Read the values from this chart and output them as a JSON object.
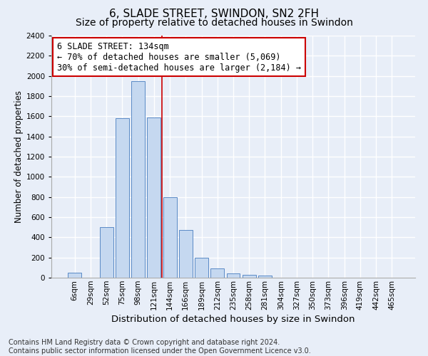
{
  "title": "6, SLADE STREET, SWINDON, SN2 2FH",
  "subtitle": "Size of property relative to detached houses in Swindon",
  "xlabel": "Distribution of detached houses by size in Swindon",
  "ylabel": "Number of detached properties",
  "categories": [
    "6sqm",
    "29sqm",
    "52sqm",
    "75sqm",
    "98sqm",
    "121sqm",
    "144sqm",
    "166sqm",
    "189sqm",
    "212sqm",
    "235sqm",
    "258sqm",
    "281sqm",
    "304sqm",
    "327sqm",
    "350sqm",
    "373sqm",
    "396sqm",
    "419sqm",
    "442sqm",
    "465sqm"
  ],
  "values": [
    50,
    0,
    500,
    1580,
    1950,
    1590,
    800,
    470,
    200,
    90,
    40,
    30,
    20,
    0,
    0,
    0,
    0,
    0,
    0,
    0,
    0
  ],
  "bar_color": "#c5d8f0",
  "bar_edge_color": "#5a8ac6",
  "vline_color": "#cc0000",
  "vline_x": 5.5,
  "annotation_text": "6 SLADE STREET: 134sqm\n← 70% of detached houses are smaller (5,069)\n30% of semi-detached houses are larger (2,184) →",
  "annotation_box_edgecolor": "#cc0000",
  "ylim": [
    0,
    2400
  ],
  "yticks": [
    0,
    200,
    400,
    600,
    800,
    1000,
    1200,
    1400,
    1600,
    1800,
    2000,
    2200,
    2400
  ],
  "bg_color": "#e8eef8",
  "grid_color": "#ffffff",
  "title_fontsize": 11,
  "subtitle_fontsize": 10,
  "xlabel_fontsize": 9.5,
  "ylabel_fontsize": 8.5,
  "tick_fontsize": 7.5,
  "annotation_fontsize": 8.5,
  "footer_fontsize": 7,
  "footer_line1": "Contains HM Land Registry data © Crown copyright and database right 2024.",
  "footer_line2": "Contains public sector information licensed under the Open Government Licence v3.0."
}
